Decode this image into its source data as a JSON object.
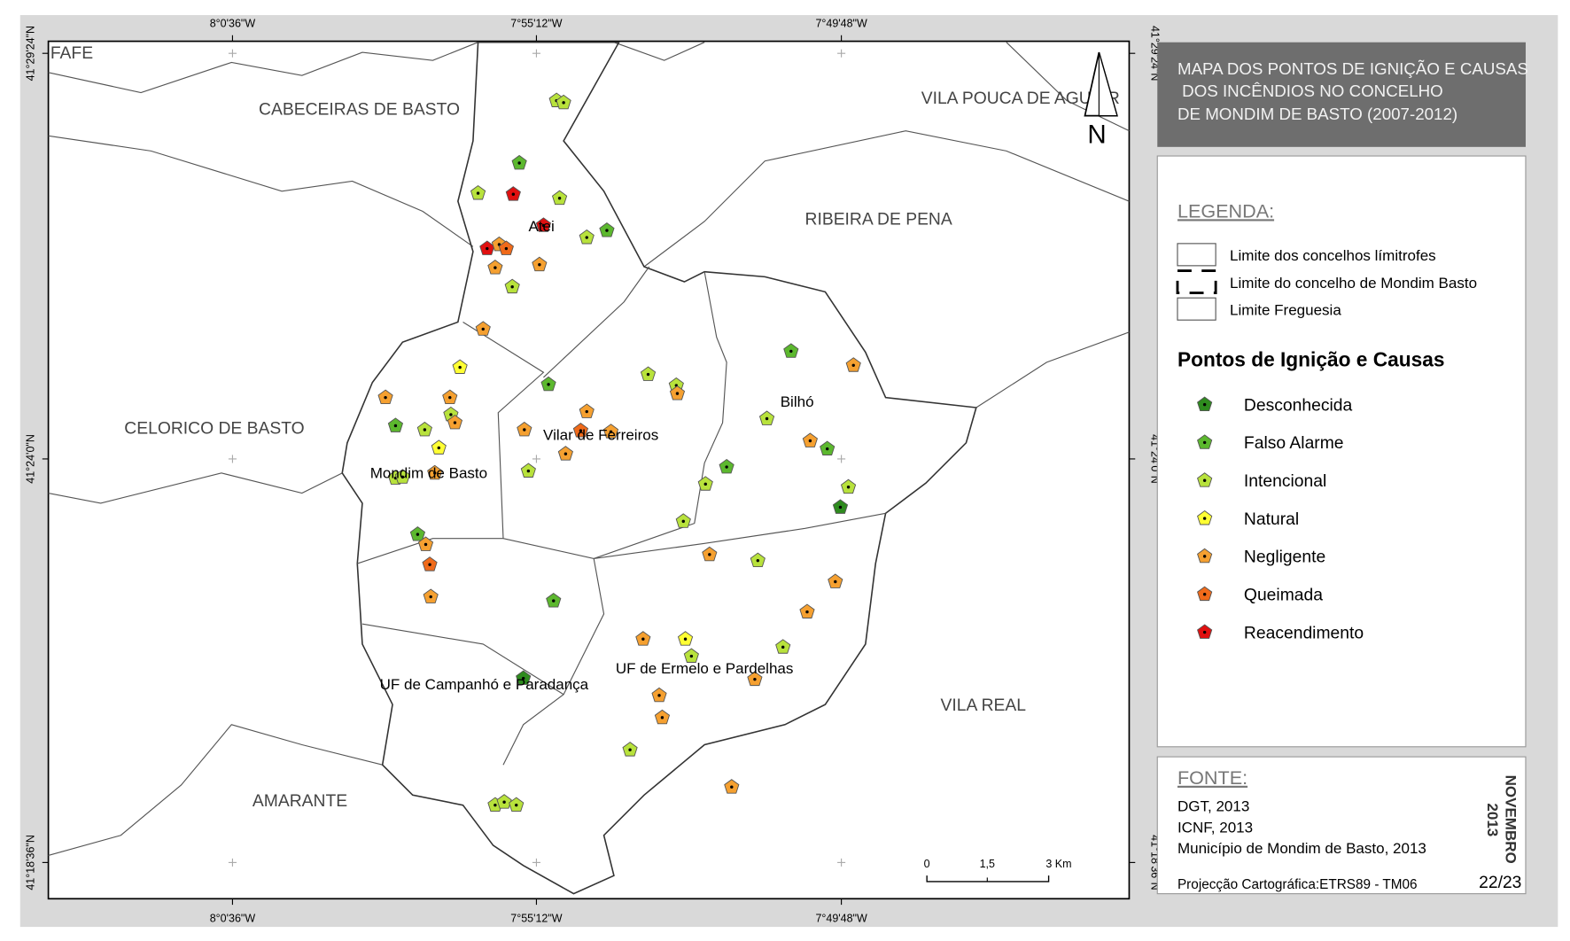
{
  "title": [
    "MAPA DOS PONTOS DE IGNIÇÃO E CAUSAS",
    " DOS INCÊNDIOS NO CONCELHO",
    "DE MONDIM DE BASTO (2007-2012)"
  ],
  "graticule": {
    "longitudes": [
      "8°0'36\"W",
      "7°55'12\"W",
      "7°49'48\"W"
    ],
    "latitudes": [
      "41°29'24\"N",
      "41°24'0\"N",
      "41°18'36\"N"
    ]
  },
  "north": "N",
  "places": [
    "FAFE",
    "CABECEIRAS DE BASTO",
    "VILA POUCA DE AGUIAR",
    "RIBEIRA DE PENA",
    "CELORICO DE BASTO",
    "AMARANTE",
    "VILA REAL"
  ],
  "parishes": [
    "Atei",
    "Vilar de Ferreiros",
    "Bilhó",
    "Mondim de Basto",
    "UF de Campanhó e Paradança",
    "UF de Ermelo e Pardelhas"
  ],
  "legend": {
    "heading": "LEGENDA:",
    "boundaries": [
      "Limite dos concelhos límitrofes",
      "Limite do concelho de Mondim Basto",
      "Limite Freguesia"
    ],
    "points_title": "Pontos de Ignição e Causas",
    "causes": [
      {
        "name": "Desconhecida",
        "color": "#2e8b1e"
      },
      {
        "name": "Falso Alarme",
        "color": "#5cb82e"
      },
      {
        "name": "Intencional",
        "color": "#b8e23c"
      },
      {
        "name": "Natural",
        "color": "#ffff33"
      },
      {
        "name": "Negligente",
        "color": "#f5a030"
      },
      {
        "name": "Queimada",
        "color": "#f06a1a"
      },
      {
        "name": "Reacendimento",
        "color": "#e01010"
      }
    ]
  },
  "scale_bar": [
    "0",
    "1,5",
    "3 Km"
  ],
  "source": {
    "heading": "FONTE:",
    "lines": [
      "DGT, 2013",
      "ICNF, 2013",
      "Município de Mondim de Basto, 2013"
    ],
    "projection": "Projecção Cartográfica:ETRS89 - TM06"
  },
  "date": [
    "NOVEMBRO",
    "2013"
  ],
  "page": "22/23"
}
